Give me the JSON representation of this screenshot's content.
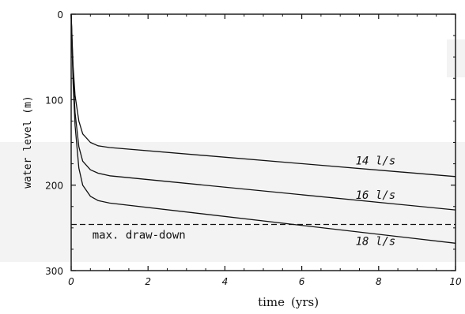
{
  "chart_data": {
    "type": "line",
    "xlabel": "time",
    "xlabel_unit": "(yrs)",
    "ylabel": "water level (m)",
    "xlim": [
      0,
      10
    ],
    "ylim": [
      0,
      300
    ],
    "y_inverted": true,
    "xticks": [
      "0",
      "2",
      "4",
      "6",
      "8",
      "10"
    ],
    "yticks": [
      "0",
      "100",
      "200",
      "300"
    ],
    "colors": {
      "line": "#111111",
      "band": "#f3f3f3"
    },
    "series": [
      {
        "name": "14 l/s",
        "x": [
          0,
          0.05,
          0.1,
          0.2,
          0.3,
          0.5,
          0.7,
          1,
          10
        ],
        "y": [
          0,
          60,
          95,
          125,
          140,
          150,
          154,
          156,
          190
        ]
      },
      {
        "name": "16 l/s",
        "x": [
          0,
          0.05,
          0.1,
          0.2,
          0.3,
          0.5,
          0.7,
          1,
          10
        ],
        "y": [
          0,
          70,
          115,
          155,
          172,
          182,
          186,
          189,
          229
        ]
      },
      {
        "name": "18 l/s",
        "x": [
          0,
          0.05,
          0.1,
          0.2,
          0.3,
          0.5,
          0.7,
          1,
          10
        ],
        "y": [
          0,
          80,
          130,
          180,
          200,
          213,
          218,
          221,
          268
        ]
      }
    ],
    "reference_lines": [
      {
        "label": "max. draw-down",
        "y": 246,
        "style": "dashed"
      }
    ],
    "annotations": [
      {
        "text": "14 l/s",
        "x": 7.4,
        "y": 176
      },
      {
        "text": "16 l/s",
        "x": 7.4,
        "y": 216
      },
      {
        "text": "18 l/s",
        "x": 7.4,
        "y": 270
      }
    ]
  }
}
